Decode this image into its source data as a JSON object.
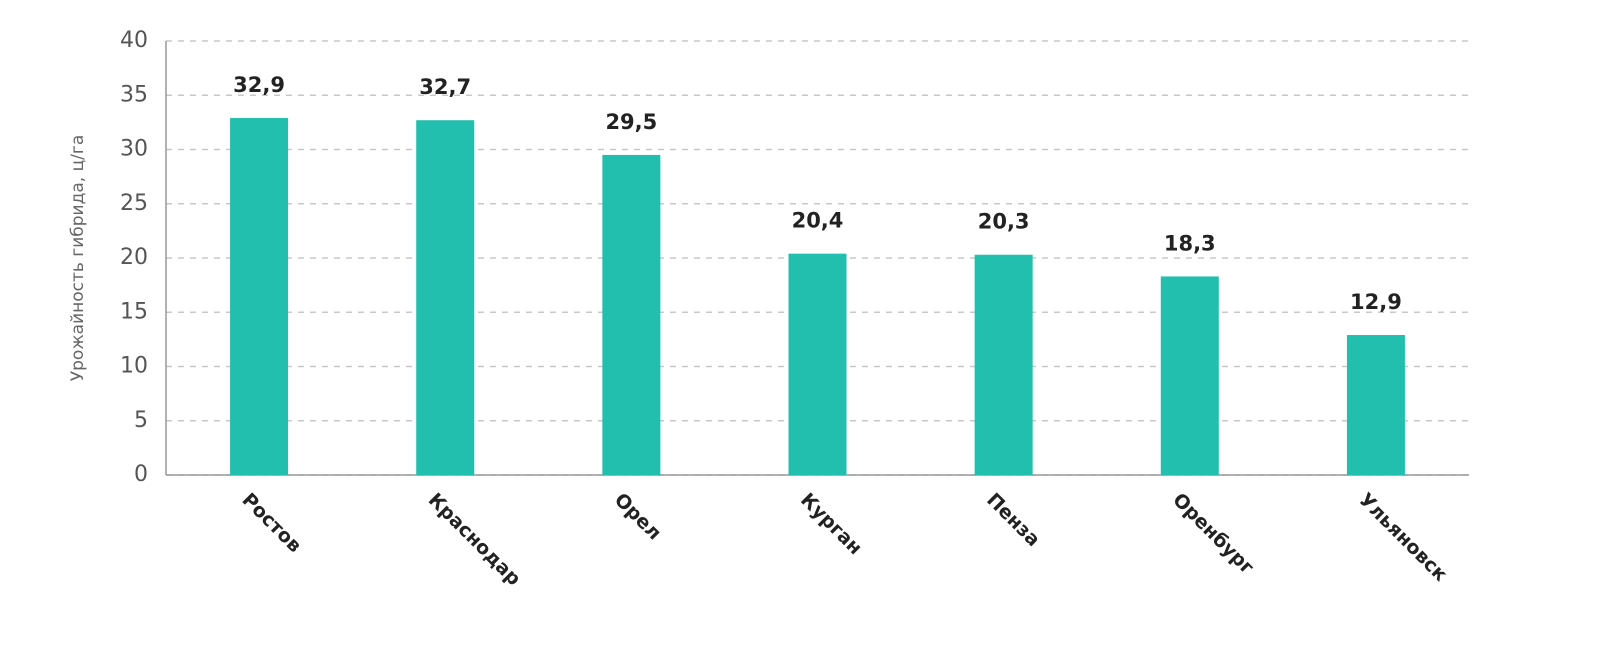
{
  "chart_data": {
    "type": "bar",
    "y_label": "Урожайность гибрида, ц/га",
    "categories": [
      "Ростов",
      "Краснодар",
      "Орел",
      "Курган",
      "Пенза",
      "Оренбург",
      "Ульяновск"
    ],
    "values": [
      32.9,
      32.7,
      29.5,
      20.4,
      20.3,
      18.3,
      12.9
    ],
    "value_labels": [
      "32,9",
      "32,7",
      "29,5",
      "20,4",
      "20,3",
      "18,3",
      "12,9"
    ],
    "color": "#22bfae",
    "ylim": [
      0,
      40
    ],
    "yticks": [
      0,
      5,
      10,
      15,
      20,
      25,
      30,
      35,
      40
    ],
    "grid": true
  }
}
